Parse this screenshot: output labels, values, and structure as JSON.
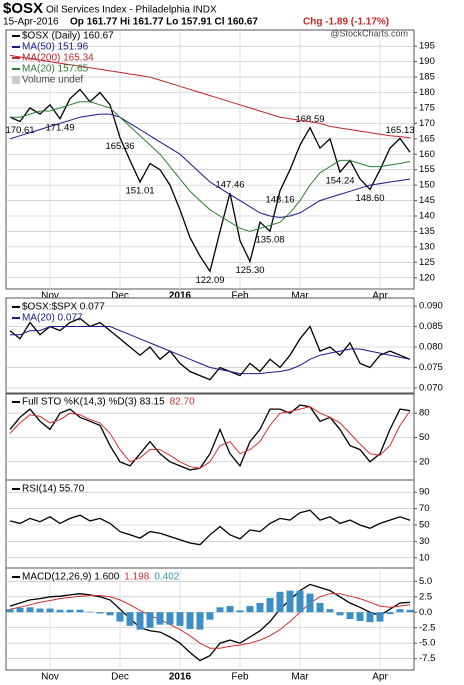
{
  "header": {
    "symbol": "$OSX",
    "name": "Oil Services Index - Philadelphia INDX",
    "date": "15-Apr-2016",
    "quote": "Op 161.77 Hi 161.77 Lo 157.91 Cl 160.67",
    "change": "Chg -1.89 (-1.17%)",
    "watermark": "@StockCharts.com"
  },
  "chart_data": [
    {
      "type": "line",
      "annotation": "Volume undef",
      "categories": [
        null,
        null,
        null,
        null,
        "Nov",
        null,
        null,
        null,
        null,
        null,
        null,
        "Dec",
        null,
        null,
        null,
        null,
        null,
        "2016",
        null,
        null,
        null,
        null,
        null,
        "Feb",
        null,
        null,
        null,
        null,
        null,
        "Mar",
        null,
        null,
        null,
        null,
        null,
        null,
        null,
        "Apr",
        null,
        null,
        null
      ],
      "ylim": [
        117,
        197
      ],
      "yticks": [
        120,
        125,
        130,
        135,
        140,
        145,
        150,
        155,
        160,
        165,
        170,
        175,
        180,
        185,
        190,
        195
      ],
      "grid": true,
      "series": [
        {
          "name": "$OSX (Daily) 160.67",
          "color": "#000000",
          "values": [
            172,
            170.61,
            175,
            173,
            176,
            171.49,
            178,
            181,
            177,
            180,
            176,
            165.36,
            158,
            151.01,
            157,
            155,
            150,
            142,
            133,
            127,
            122.09,
            135,
            147.46,
            132,
            125.3,
            138,
            135.08,
            148.16,
            155,
            163,
            168.59,
            162,
            165,
            154.24,
            158,
            152,
            148.6,
            155,
            162,
            165.13,
            160.67
          ],
          "value_labels": [
            null,
            "170.61",
            null,
            null,
            null,
            "171.49",
            null,
            null,
            null,
            null,
            null,
            "165.36",
            null,
            "151.01",
            null,
            null,
            null,
            null,
            null,
            null,
            "122.09",
            null,
            "147.46",
            null,
            "125.30",
            null,
            "135.08",
            "148.16",
            null,
            null,
            "168.59",
            null,
            null,
            "154.24",
            null,
            null,
            "148.60",
            null,
            null,
            "165.13",
            null
          ]
        },
        {
          "name": "MA(50) 151.96",
          "color": "#1a1a8c",
          "values": [
            165,
            166,
            167,
            168,
            169,
            170,
            171,
            172,
            172.5,
            173,
            173,
            172,
            170,
            168,
            166,
            164,
            162,
            160,
            157,
            154,
            151,
            149,
            147,
            145,
            143,
            141,
            140,
            139.5,
            140,
            141,
            143,
            145,
            146,
            147,
            148,
            149,
            150,
            150.5,
            151,
            151.5,
            151.96
          ]
        },
        {
          "name": "MA(200) 165.34",
          "color": "#c0282d",
          "values": [
            192,
            191.5,
            191,
            190.5,
            190,
            189.5,
            189,
            188.5,
            188,
            187.5,
            187,
            186.5,
            186,
            185.5,
            185,
            184,
            183,
            182,
            181,
            180,
            179,
            178,
            177,
            176,
            175,
            174,
            173,
            172,
            171.5,
            171,
            170.5,
            170,
            169,
            168.5,
            168,
            167.5,
            167,
            166.5,
            166,
            165.7,
            165.34
          ]
        },
        {
          "name": "MA(20) 157.65",
          "color": "#2e7d32",
          "values": [
            172,
            172,
            173,
            174,
            174,
            175,
            176,
            177,
            177,
            176,
            175,
            172,
            169,
            166,
            163,
            160,
            156,
            152,
            148,
            145,
            142,
            140,
            138,
            136,
            135,
            136,
            137,
            138,
            141,
            145,
            150,
            154,
            156,
            158,
            158,
            157,
            156,
            156,
            156.5,
            157,
            157.65
          ]
        }
      ]
    },
    {
      "type": "line",
      "ylim": [
        0.069,
        0.091
      ],
      "grid": true,
      "yticks": [
        {
          "value": 0.07,
          "label": "0.070"
        },
        0.075,
        {
          "value": 0.08,
          "label": "0.080"
        },
        0.085,
        {
          "value": 0.09,
          "label": "0.090"
        }
      ],
      "series": [
        {
          "name": "$OSX:$SPX 0.077",
          "color": "#000000",
          "values": [
            0.084,
            0.082,
            0.086,
            0.083,
            0.085,
            0.084,
            0.086,
            0.087,
            0.085,
            0.086,
            0.084,
            0.082,
            0.08,
            0.078,
            0.08,
            0.077,
            0.079,
            0.076,
            0.074,
            0.073,
            0.072,
            0.075,
            0.074,
            0.073,
            0.076,
            0.074,
            0.077,
            0.075,
            0.078,
            0.082,
            0.085,
            0.079,
            0.08,
            0.078,
            0.081,
            0.076,
            0.075,
            0.078,
            0.079,
            0.078,
            0.077
          ]
        },
        {
          "name": "MA(20) 0.077",
          "color": "#1a1a8c",
          "values": [
            0.083,
            0.083,
            0.084,
            0.084,
            0.085,
            0.085,
            0.085,
            0.085,
            0.085,
            0.085,
            0.085,
            0.084,
            0.083,
            0.082,
            0.081,
            0.08,
            0.079,
            0.078,
            0.077,
            0.076,
            0.075,
            0.0745,
            0.074,
            0.0735,
            0.0735,
            0.0735,
            0.0738,
            0.074,
            0.0745,
            0.0755,
            0.077,
            0.078,
            0.0785,
            0.079,
            0.0795,
            0.0795,
            0.079,
            0.0785,
            0.078,
            0.0775,
            0.077
          ]
        }
      ]
    },
    {
      "type": "line",
      "ylim": [
        0,
        100
      ],
      "yticks": [
        20,
        50,
        80
      ],
      "grid": true,
      "legend": "inline",
      "series": [
        {
          "name": "Full STO %K(14,3) %D(3) 83.15",
          "color": "#000000",
          "values": [
            60,
            75,
            85,
            70,
            60,
            80,
            85,
            75,
            70,
            65,
            40,
            20,
            15,
            30,
            45,
            30,
            20,
            15,
            10,
            12,
            30,
            60,
            30,
            15,
            45,
            60,
            85,
            85,
            80,
            90,
            88,
            70,
            75,
            60,
            40,
            35,
            20,
            30,
            60,
            85,
            83.15
          ]
        },
        {
          "name": "82.70",
          "color": "#d32f2f",
          "values": [
            55,
            68,
            78,
            76,
            68,
            72,
            80,
            78,
            72,
            68,
            55,
            35,
            20,
            25,
            35,
            35,
            28,
            20,
            14,
            12,
            20,
            40,
            45,
            30,
            35,
            45,
            65,
            80,
            82,
            85,
            88,
            80,
            75,
            68,
            55,
            42,
            30,
            28,
            40,
            65,
            82.7
          ]
        }
      ]
    },
    {
      "type": "line",
      "ylim": [
        0,
        100
      ],
      "yticks": [
        10,
        30,
        50,
        70,
        90
      ],
      "grid": true,
      "series": [
        {
          "name": "RSI(14) 55.70",
          "color": "#000000",
          "values": [
            55,
            52,
            58,
            54,
            60,
            52,
            58,
            62,
            55,
            58,
            52,
            42,
            38,
            34,
            42,
            40,
            36,
            32,
            28,
            26,
            38,
            48,
            38,
            33,
            44,
            42,
            52,
            58,
            56,
            65,
            68,
            56,
            60,
            52,
            56,
            50,
            46,
            52,
            56,
            60,
            55.7
          ]
        }
      ]
    },
    {
      "type": "line",
      "ylim": [
        -9,
        6.5
      ],
      "grid": true,
      "legend": "inline",
      "yticks": [
        -7.5,
        {
          "value": -5,
          "label": "-5.0"
        },
        -2.5,
        {
          "value": 0,
          "label": "0.0"
        },
        2.5,
        {
          "value": 5,
          "label": "5.0"
        }
      ],
      "categories": [
        null,
        null,
        null,
        null,
        "Nov",
        null,
        null,
        null,
        null,
        null,
        null,
        "Dec",
        null,
        null,
        null,
        null,
        null,
        "2016",
        null,
        null,
        null,
        null,
        null,
        "Feb",
        null,
        null,
        null,
        null,
        null,
        "Mar",
        null,
        null,
        null,
        null,
        null,
        null,
        null,
        "Apr",
        null,
        null,
        null
      ],
      "series": [
        {
          "name": "MACD(12,26,9) 1.600",
          "color": "#000000",
          "values": [
            1,
            1.5,
            2,
            2.2,
            2.5,
            2.6,
            2.8,
            3,
            2.8,
            2.5,
            2,
            0.5,
            -1,
            -2.5,
            -3,
            -3.2,
            -4,
            -5,
            -6.5,
            -7.8,
            -7,
            -5,
            -4.5,
            -5,
            -4,
            -3,
            -1.5,
            0.5,
            2,
            3.5,
            4.5,
            4,
            3.5,
            2.5,
            1.5,
            0.8,
            0,
            -0.5,
            0.5,
            1.5,
            1.6
          ]
        },
        {
          "name": "1.198",
          "color": "#d32f2f",
          "values": [
            0.5,
            0.8,
            1.2,
            1.6,
            1.9,
            2.2,
            2.4,
            2.6,
            2.7,
            2.7,
            2.5,
            2,
            1.2,
            0.3,
            -0.5,
            -1.2,
            -2,
            -2.8,
            -3.8,
            -5,
            -5.8,
            -5.8,
            -5.5,
            -5.3,
            -5,
            -4.5,
            -3.8,
            -2.8,
            -1.5,
            0,
            1.5,
            2.5,
            3,
            3,
            2.6,
            2.2,
            1.6,
            1,
            0.8,
            1,
            1.198
          ]
        },
        {
          "name": "0.402",
          "color": "#3b8fc4",
          "type": "bar",
          "values": [
            0.5,
            0.7,
            0.8,
            0.6,
            0.6,
            0.4,
            0.4,
            0.4,
            0.1,
            -0.2,
            -0.5,
            -1.5,
            -2.2,
            -2.8,
            -2.5,
            -2,
            -2,
            -2.2,
            -2.7,
            -2.8,
            -1.2,
            0.8,
            1,
            0.3,
            1,
            1.5,
            2.3,
            3.3,
            3.5,
            3.5,
            3,
            1.5,
            0.5,
            -0.5,
            -1.1,
            -1.4,
            -1.6,
            -1.5,
            -0.3,
            0.5,
            0.402
          ]
        }
      ]
    }
  ]
}
